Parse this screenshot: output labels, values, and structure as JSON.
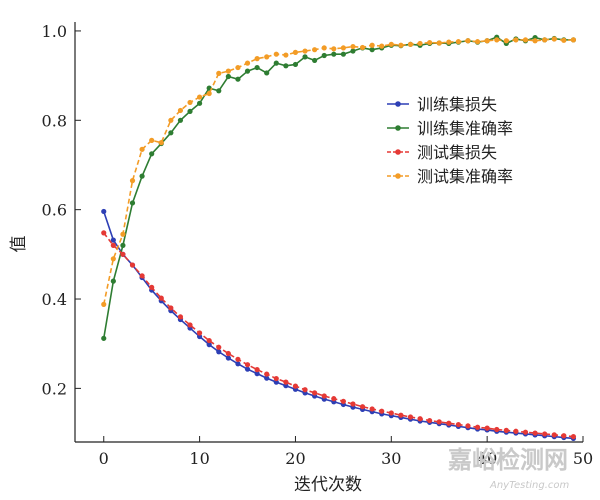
{
  "chart_data": {
    "type": "line",
    "title": "",
    "xlabel": "迭代次数",
    "ylabel": "值",
    "xlim": [
      -3,
      50
    ],
    "ylim": [
      0.08,
      1.02
    ],
    "xticks": [
      0,
      10,
      20,
      30,
      40,
      50
    ],
    "yticks": [
      0.2,
      0.4,
      0.6,
      0.8,
      1.0
    ],
    "ytick_labels": [
      "0.2",
      "0.4",
      "0.6",
      "0.8",
      "1.0"
    ],
    "grid": false,
    "legend_position": "right",
    "x": [
      0,
      1,
      2,
      3,
      4,
      5,
      6,
      7,
      8,
      9,
      10,
      11,
      12,
      13,
      14,
      15,
      16,
      17,
      18,
      19,
      20,
      21,
      22,
      23,
      24,
      25,
      26,
      27,
      28,
      29,
      30,
      31,
      32,
      33,
      34,
      35,
      36,
      37,
      38,
      39,
      40,
      41,
      42,
      43,
      44,
      45,
      46,
      47,
      48,
      49
    ],
    "series": [
      {
        "name": "训练集损失",
        "color": "#2d3fb5",
        "dashed": false,
        "values": [
          0.596,
          0.532,
          0.5,
          0.476,
          0.448,
          0.42,
          0.396,
          0.374,
          0.354,
          0.335,
          0.316,
          0.298,
          0.282,
          0.268,
          0.255,
          0.243,
          0.233,
          0.223,
          0.214,
          0.206,
          0.198,
          0.19,
          0.183,
          0.176,
          0.17,
          0.164,
          0.158,
          0.153,
          0.148,
          0.143,
          0.139,
          0.135,
          0.131,
          0.127,
          0.124,
          0.121,
          0.118,
          0.115,
          0.112,
          0.109,
          0.107,
          0.104,
          0.102,
          0.1,
          0.098,
          0.096,
          0.094,
          0.092,
          0.09,
          0.088
        ]
      },
      {
        "name": "训练集准确率",
        "color": "#2e7d32",
        "dashed": false,
        "values": [
          0.312,
          0.44,
          0.52,
          0.615,
          0.675,
          0.725,
          0.748,
          0.772,
          0.8,
          0.82,
          0.838,
          0.872,
          0.866,
          0.898,
          0.892,
          0.91,
          0.918,
          0.906,
          0.928,
          0.922,
          0.925,
          0.942,
          0.934,
          0.945,
          0.948,
          0.948,
          0.955,
          0.962,
          0.958,
          0.962,
          0.968,
          0.967,
          0.97,
          0.968,
          0.972,
          0.973,
          0.972,
          0.975,
          0.978,
          0.975,
          0.978,
          0.986,
          0.972,
          0.982,
          0.978,
          0.985,
          0.98,
          0.983,
          0.98,
          0.98
        ]
      },
      {
        "name": "测试集损失",
        "color": "#e53935",
        "dashed": true,
        "values": [
          0.548,
          0.52,
          0.5,
          0.476,
          0.452,
          0.426,
          0.402,
          0.38,
          0.36,
          0.342,
          0.324,
          0.307,
          0.292,
          0.278,
          0.265,
          0.253,
          0.242,
          0.232,
          0.222,
          0.214,
          0.205,
          0.197,
          0.19,
          0.183,
          0.177,
          0.171,
          0.165,
          0.159,
          0.154,
          0.149,
          0.145,
          0.14,
          0.136,
          0.132,
          0.128,
          0.125,
          0.122,
          0.119,
          0.116,
          0.113,
          0.111,
          0.108,
          0.106,
          0.104,
          0.102,
          0.1,
          0.098,
          0.096,
          0.094,
          0.092
        ]
      },
      {
        "name": "测试集准确率",
        "color": "#f39c26",
        "dashed": true,
        "values": [
          0.388,
          0.49,
          0.545,
          0.665,
          0.735,
          0.755,
          0.75,
          0.8,
          0.822,
          0.84,
          0.852,
          0.86,
          0.905,
          0.91,
          0.918,
          0.928,
          0.938,
          0.942,
          0.948,
          0.946,
          0.952,
          0.955,
          0.958,
          0.962,
          0.96,
          0.962,
          0.965,
          0.963,
          0.968,
          0.966,
          0.97,
          0.968,
          0.97,
          0.972,
          0.974,
          0.973,
          0.975,
          0.976,
          0.978,
          0.976,
          0.978,
          0.98,
          0.978,
          0.98,
          0.98,
          0.978,
          0.98,
          0.982,
          0.979,
          0.98
        ]
      }
    ]
  },
  "watermark": {
    "text_cn": "嘉峪检测网",
    "text_en": "AnyTesting.com"
  }
}
